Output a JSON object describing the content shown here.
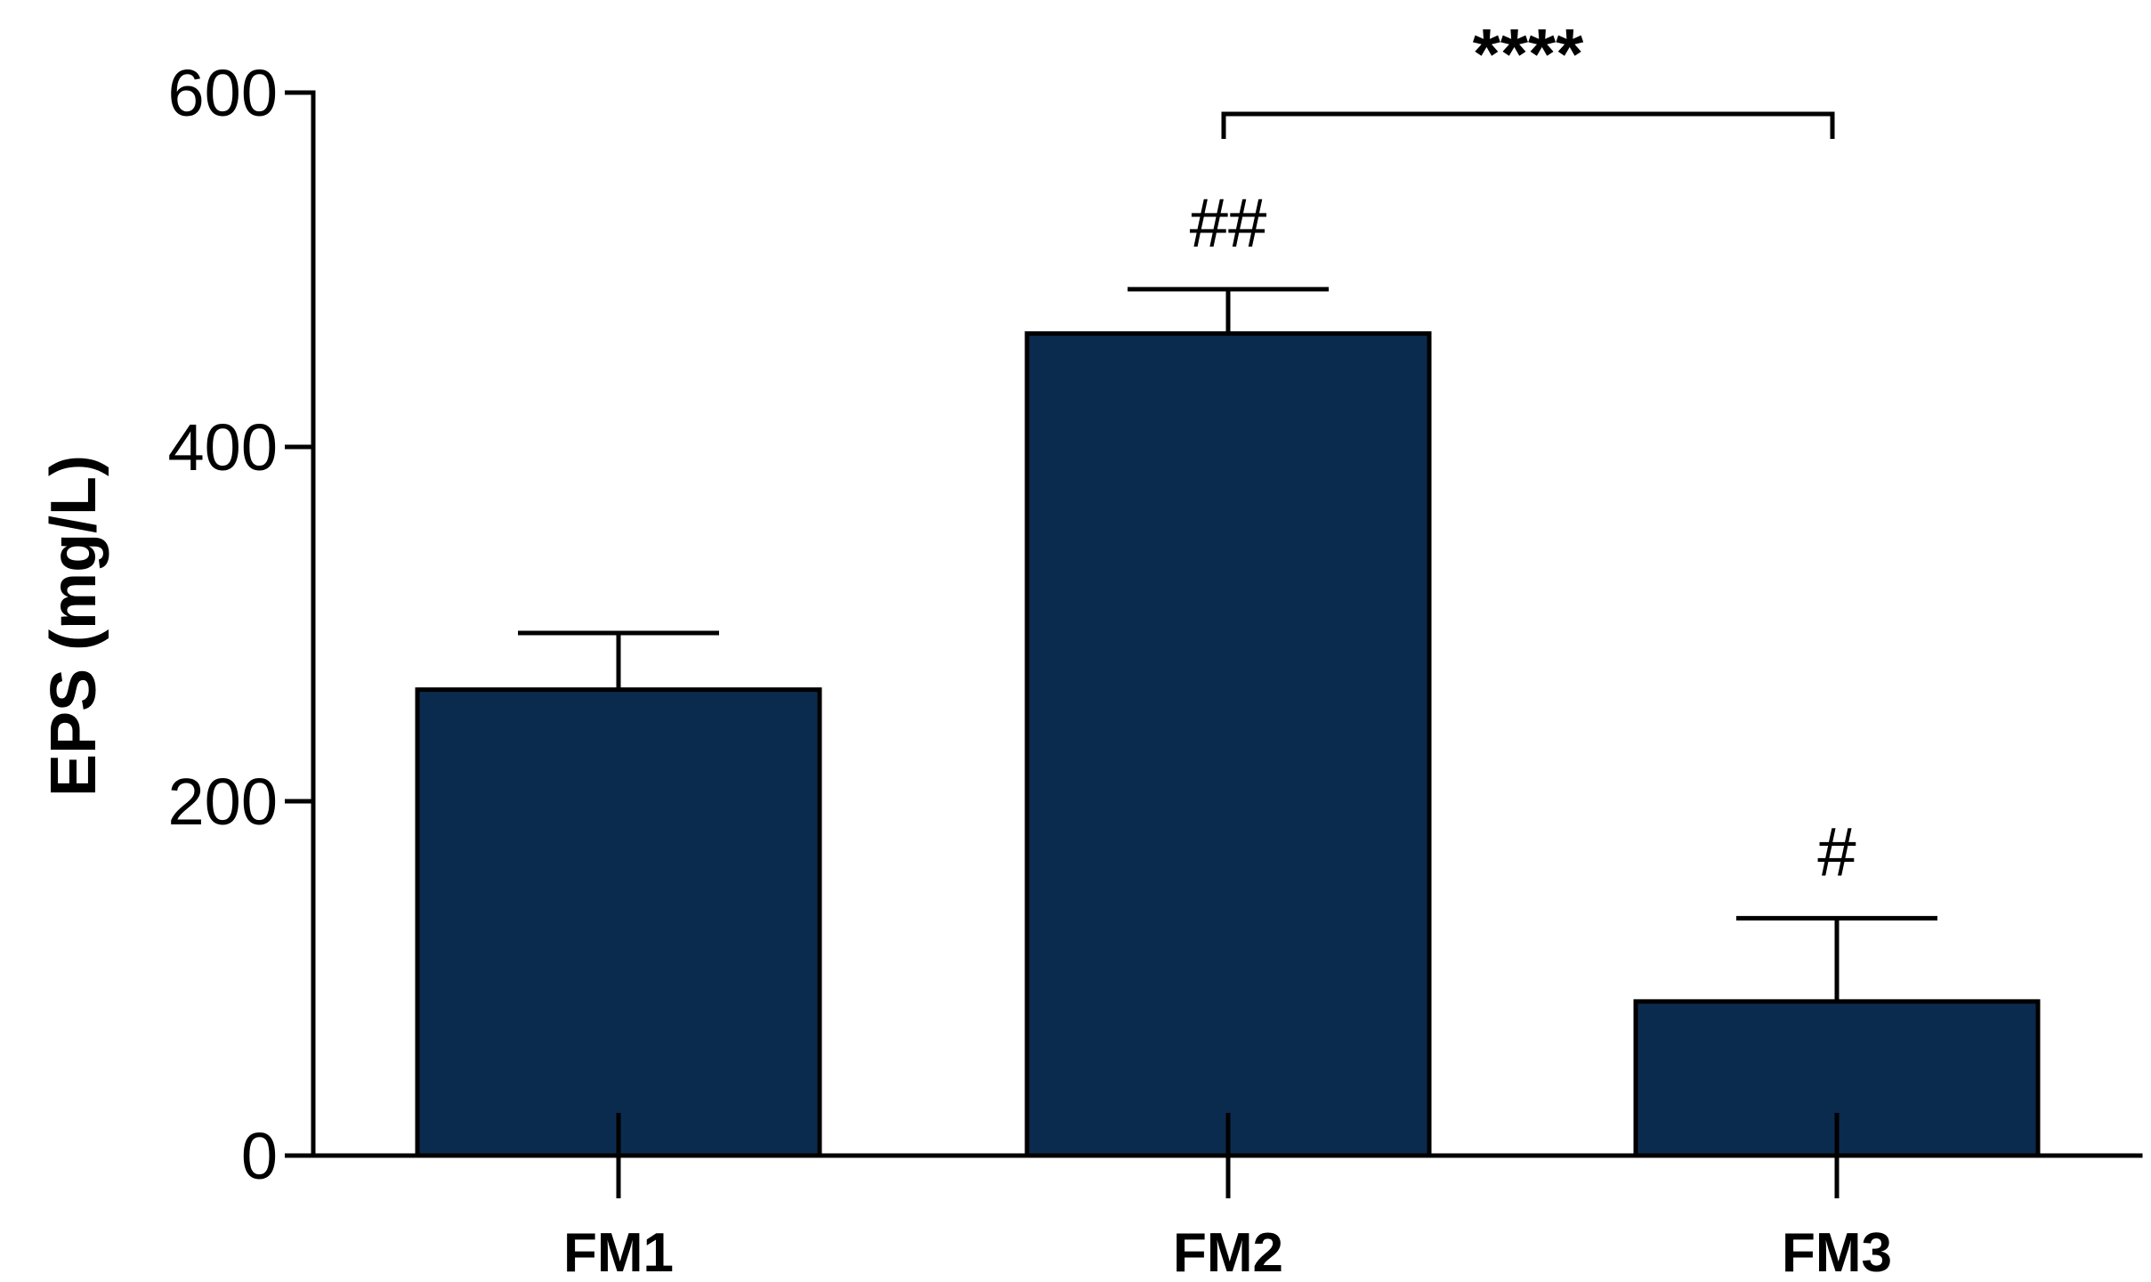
{
  "chart_data": {
    "type": "bar",
    "categories": [
      "FM1",
      "FM2",
      "FM3"
    ],
    "values": [
      263,
      464,
      87
    ],
    "errors": [
      32,
      25,
      47
    ],
    "bar_color": "#0b2b4e",
    "ylabel": "EPS (mg/L)",
    "xlabel": "",
    "ylim": [
      0,
      600
    ],
    "yticks": [
      0,
      200,
      400,
      600
    ],
    "ytick_labels": [
      "0",
      "200",
      "400",
      "600"
    ],
    "annotations": [
      "",
      "##",
      "#"
    ],
    "significance": {
      "from": "FM2",
      "to": "FM3",
      "label": "****"
    },
    "grid": false
  }
}
